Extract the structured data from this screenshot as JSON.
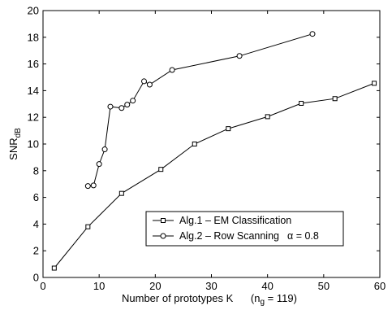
{
  "chart_data": {
    "type": "line",
    "xlabel": "Number of prototypes K",
    "xlabel_note": "(n",
    "xlabel_note_sub": "g",
    "xlabel_note_tail": " = 119)",
    "ylabel": "SNR",
    "ylabel_sub": "dB",
    "xlim": [
      0,
      60
    ],
    "ylim": [
      0,
      20
    ],
    "xticks": [
      0,
      10,
      20,
      30,
      40,
      50,
      60
    ],
    "yticks": [
      0,
      2,
      4,
      6,
      8,
      10,
      12,
      14,
      16,
      18,
      20
    ],
    "grid": false,
    "legend_position": "lower-right",
    "series": [
      {
        "name": "Alg.1 – EM Classification",
        "marker": "square",
        "x": [
          2,
          8,
          14,
          21,
          27,
          33,
          40,
          46,
          52,
          59
        ],
        "y": [
          0.7,
          3.8,
          6.3,
          8.1,
          10.0,
          11.15,
          12.05,
          13.05,
          13.4,
          14.55
        ]
      },
      {
        "name": "Alg.2 – Row Scanning",
        "name_suffix": "α = 0.8",
        "marker": "circle",
        "x": [
          8,
          9,
          10,
          11,
          12,
          14,
          15,
          16,
          18,
          19,
          23,
          35,
          48
        ],
        "y": [
          6.85,
          6.9,
          8.5,
          9.6,
          12.8,
          12.7,
          12.95,
          13.25,
          14.7,
          14.45,
          15.55,
          16.6,
          18.25
        ]
      }
    ]
  }
}
